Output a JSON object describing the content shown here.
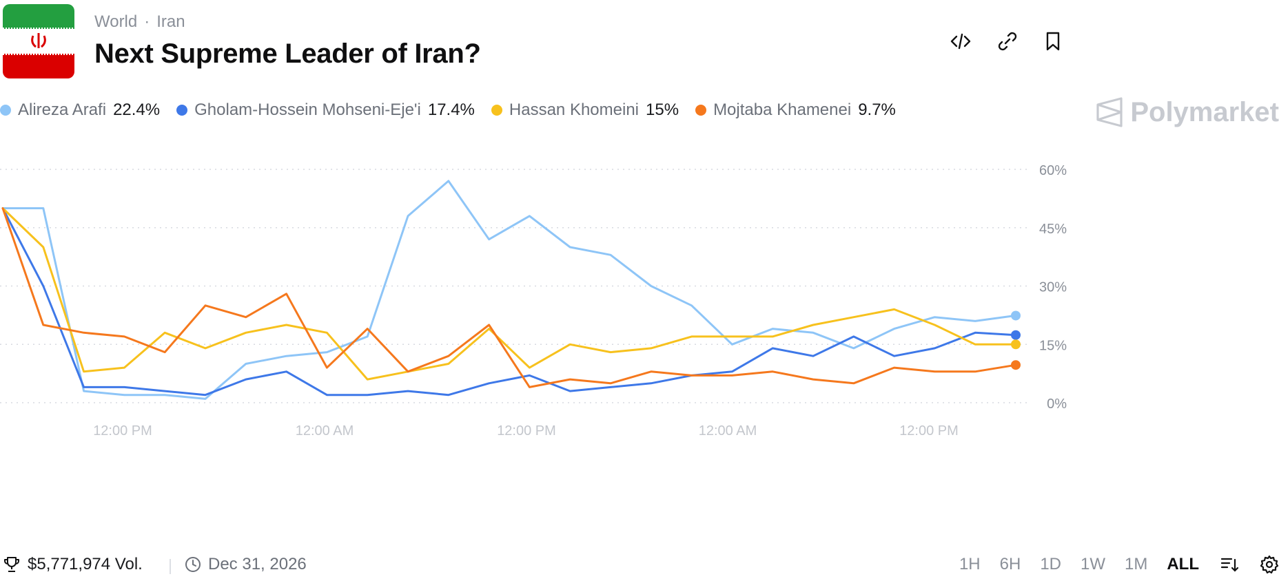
{
  "header": {
    "breadcrumb": [
      "World",
      "Iran"
    ],
    "breadcrumb_sep": "·",
    "title": "Next Supreme Leader of Iran?",
    "flag_icon": "iran-flag-icon",
    "actions": [
      {
        "name": "embed-code-button",
        "icon": "code-icon"
      },
      {
        "name": "copy-link-button",
        "icon": "link-icon"
      },
      {
        "name": "bookmark-button",
        "icon": "bookmark-icon"
      }
    ]
  },
  "brand": {
    "label": "Polymarket",
    "icon": "polymarket-logo-icon"
  },
  "legend": [
    {
      "name": "Alireza Arafi",
      "value": "22.4%",
      "color": "#8ec5f7"
    },
    {
      "name": "Gholam-Hossein Mohseni-Eje'i",
      "value": "17.4%",
      "color": "#3e78e8"
    },
    {
      "name": "Hassan Khomeini",
      "value": "15%",
      "color": "#f7c11d"
    },
    {
      "name": "Mojtaba Khamenei",
      "value": "9.7%",
      "color": "#f5781d"
    }
  ],
  "footer": {
    "volume": "$5,771,974 Vol.",
    "volume_icon": "trophy-icon",
    "end_date": "Dec 31, 2026",
    "date_icon": "clock-icon",
    "ranges": [
      "1H",
      "6H",
      "1D",
      "1W",
      "1M",
      "ALL"
    ],
    "active_range": "ALL",
    "sort_icon": "sort-icon",
    "settings_icon": "gear-icon"
  },
  "chart_data": {
    "type": "line",
    "x_tick_labels": [
      "12:00 PM",
      "12:00 AM",
      "12:00 PM",
      "12:00 AM",
      "12:00 PM"
    ],
    "y_tick_labels": [
      "60%",
      "45%",
      "30%",
      "15%",
      "0%"
    ],
    "ylim": [
      0,
      60
    ],
    "grid": true,
    "x": [
      0,
      2,
      4,
      6,
      8,
      10,
      12,
      14,
      16,
      18,
      20,
      22,
      24,
      26,
      28,
      30,
      32,
      34,
      36,
      38,
      40,
      42,
      44,
      46,
      48,
      50
    ],
    "series": [
      {
        "name": "Alireza Arafi",
        "color": "#8ec5f7",
        "values": [
          50,
          50,
          3,
          2,
          2,
          1,
          10,
          12,
          13,
          17,
          48,
          57,
          42,
          48,
          40,
          38,
          30,
          25,
          15,
          19,
          18,
          14,
          19,
          22,
          21,
          22.4
        ]
      },
      {
        "name": "Gholam-Hossein Mohseni-Eje'i",
        "color": "#3e78e8",
        "values": [
          50,
          30,
          4,
          4,
          3,
          2,
          6,
          8,
          2,
          2,
          3,
          2,
          5,
          7,
          3,
          4,
          5,
          7,
          8,
          14,
          12,
          17,
          12,
          14,
          18,
          17.4
        ]
      },
      {
        "name": "Hassan Khomeini",
        "color": "#f7c11d",
        "values": [
          50,
          40,
          8,
          9,
          18,
          14,
          18,
          20,
          18,
          6,
          8,
          10,
          19,
          9,
          15,
          13,
          14,
          17,
          17,
          17,
          20,
          22,
          24,
          20,
          15,
          15
        ]
      },
      {
        "name": "Mojtaba Khamenei",
        "color": "#f5781d",
        "values": [
          50,
          20,
          18,
          17,
          13,
          25,
          22,
          28,
          9,
          19,
          8,
          12,
          20,
          4,
          6,
          5,
          8,
          7,
          7,
          8,
          6,
          5,
          9,
          8,
          8,
          9.7
        ]
      }
    ]
  }
}
